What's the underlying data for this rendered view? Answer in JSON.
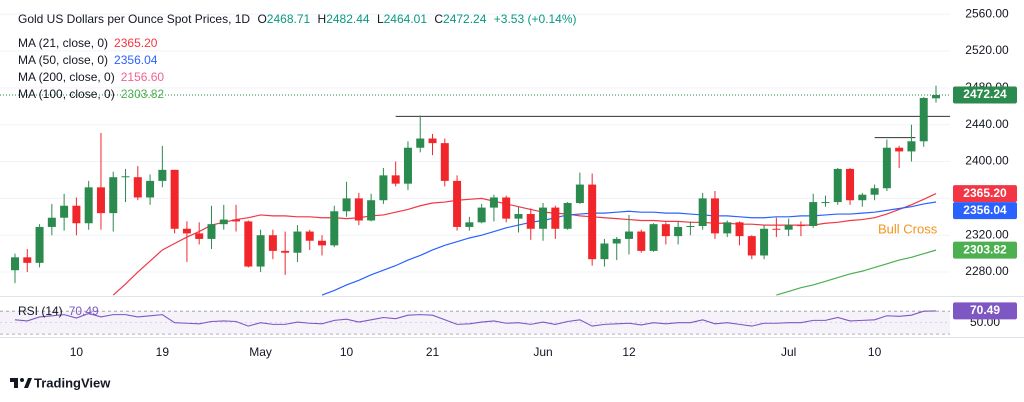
{
  "chart_data": {
    "type": "candlestick",
    "title": "Gold US Dollars per Ounce Spot Prices, 1D",
    "ohlc_labels": [
      "O",
      "H",
      "L",
      "C"
    ],
    "change": "+3.53 (+0.14%)",
    "annotation": "Bull Cross",
    "footer": "TradingView",
    "up_color": "#2b8a4e",
    "down_color": "#f0262b",
    "grid": true,
    "categories": [
      null,
      null,
      null,
      null,
      null,
      "10",
      null,
      null,
      null,
      null,
      null,
      null,
      "19",
      null,
      null,
      null,
      null,
      null,
      null,
      null,
      "May",
      null,
      null,
      null,
      null,
      null,
      null,
      "10",
      null,
      null,
      null,
      null,
      null,
      null,
      "21",
      null,
      null,
      null,
      null,
      null,
      null,
      null,
      null,
      "Jun",
      null,
      null,
      null,
      null,
      null,
      null,
      "12",
      null,
      null,
      null,
      null,
      null,
      null,
      null,
      null,
      null,
      null,
      null,
      null,
      "Jul",
      null,
      null,
      null,
      null,
      null,
      null,
      "10",
      null,
      null,
      null,
      null,
      null
    ],
    "open": [
      2282,
      2296,
      2290,
      2329,
      2339,
      2352,
      2333,
      2372,
      2344,
      2383,
      2383,
      2361,
      2379,
      2391,
      2327,
      2322,
      2316,
      2332,
      2337,
      2335,
      2286,
      2320,
      2303,
      2301,
      2324,
      2314,
      2309,
      2346,
      2360,
      2336,
      2358,
      2385,
      2376,
      2415,
      2425,
      2420,
      2379,
      2329,
      2334,
      2350,
      2361,
      2338,
      2343,
      2327,
      2350,
      2327,
      2355,
      2375,
      2294,
      2311,
      2316,
      2324,
      2303,
      2332,
      2319,
      2329,
      2330,
      2360,
      2322,
      2334,
      2319,
      2298,
      2327,
      2326,
      2331,
      2330,
      2355,
      2356,
      2392,
      2358,
      2364,
      2371,
      2415,
      2411,
      2422,
      2468.71
    ],
    "high": [
      2300,
      2305,
      2332,
      2354,
      2365,
      2361,
      2379,
      2431,
      2389,
      2392,
      2395,
      2386,
      2417,
      2391,
      2335,
      2334,
      2352,
      2353,
      2353,
      2336,
      2326,
      2326,
      2324,
      2331,
      2326,
      2320,
      2352,
      2378,
      2366,
      2365,
      2393,
      2400,
      2422,
      2450,
      2430,
      2425,
      2385,
      2340,
      2354,
      2364,
      2363,
      2351,
      2349,
      2355,
      2352,
      2356,
      2388,
      2387,
      2316,
      2318,
      2342,
      2326,
      2333,
      2334,
      2335,
      2335,
      2366,
      2368,
      2336,
      2335,
      2320,
      2331,
      2339,
      2338,
      2335,
      2365,
      2363,
      2393,
      2393,
      2366,
      2375,
      2424,
      2417,
      2440,
      2470,
      2482.44
    ],
    "low": [
      2268,
      2280,
      2285,
      2320,
      2325,
      2320,
      2326,
      2326,
      2324,
      2356,
      2358,
      2353,
      2372,
      2322,
      2291,
      2310,
      2305,
      2326,
      2324,
      2285,
      2280,
      2294,
      2277,
      2291,
      2304,
      2298,
      2307,
      2340,
      2331,
      2335,
      2354,
      2373,
      2369,
      2410,
      2407,
      2373,
      2325,
      2325,
      2333,
      2335,
      2334,
      2323,
      2315,
      2314,
      2316,
      2326,
      2354,
      2287,
      2286,
      2293,
      2299,
      2301,
      2302,
      2310,
      2310,
      2320,
      2326,
      2316,
      2318,
      2309,
      2294,
      2294,
      2318,
      2319,
      2319,
      2328,
      2351,
      2353,
      2353,
      2351,
      2358,
      2368,
      2393,
      2400,
      2416,
      2464.01
    ],
    "close": [
      2296,
      2290,
      2329,
      2339,
      2352,
      2333,
      2372,
      2344,
      2383,
      2384,
      2361,
      2379,
      2391,
      2327,
      2322,
      2316,
      2332,
      2337,
      2335,
      2286,
      2320,
      2303,
      2301,
      2324,
      2314,
      2309,
      2346,
      2360,
      2336,
      2358,
      2385,
      2376,
      2415,
      2425,
      2420,
      2379,
      2329,
      2334,
      2350,
      2361,
      2338,
      2343,
      2327,
      2350,
      2327,
      2355,
      2375,
      2294,
      2311,
      2316,
      2324,
      2303,
      2332,
      2319,
      2329,
      2330,
      2360,
      2322,
      2334,
      2319,
      2298,
      2327,
      2326,
      2331,
      2330,
      2356,
      2356,
      2392,
      2358,
      2364,
      2371,
      2415,
      2411,
      2422,
      2469,
      2472.24
    ],
    "series": [
      {
        "name": "MA (21, close, 0)",
        "color": "#f23645",
        "last": {
          "value": 2365.2,
          "label": "2365.20"
        },
        "values": [
          null,
          null,
          null,
          null,
          null,
          null,
          null,
          null,
          2255,
          2267,
          2280,
          2292,
          2304,
          2311,
          2318,
          2324,
          2331,
          2334,
          2337,
          2339,
          2342,
          2341,
          2341,
          2340,
          2340,
          2339,
          2339,
          2338,
          2339,
          2341,
          2342,
          2345,
          2348,
          2352,
          2355,
          2356,
          2358,
          2359,
          2360,
          2357,
          2354,
          2351,
          2348,
          2345,
          2344,
          2343,
          2341,
          2340,
          2339,
          2338,
          2337,
          2336,
          2336,
          2335,
          2335,
          2334,
          2334,
          2333,
          2333,
          2332,
          2332,
          2331,
          2331,
          2331,
          2331,
          2331,
          2333,
          2334,
          2336,
          2337,
          2339,
          2343,
          2348,
          2353,
          2359,
          2365.2
        ]
      },
      {
        "name": "MA (50, close, 0)",
        "color": "#2962ff",
        "last": {
          "value": 2356.04,
          "label": "2356.04"
        },
        "values": [
          null,
          null,
          null,
          null,
          null,
          null,
          null,
          null,
          null,
          null,
          null,
          null,
          null,
          null,
          null,
          null,
          null,
          null,
          null,
          null,
          null,
          null,
          null,
          null,
          null,
          2255,
          2260,
          2266,
          2271,
          2277,
          2282,
          2287,
          2293,
          2298,
          2304,
          2309,
          2313,
          2317,
          2320,
          2324,
          2328,
          2331,
          2334,
          2336,
          2339,
          2342,
          2343,
          2344,
          2344,
          2345,
          2346,
          2345,
          2345,
          2344,
          2344,
          2343,
          2342,
          2341,
          2341,
          2340,
          2339,
          2339,
          2340,
          2340,
          2341,
          2341,
          2342,
          2343,
          2343,
          2344,
          2345,
          2347,
          2349,
          2351,
          2354,
          2356.04
        ]
      },
      {
        "name": "MA (200, close, 0)",
        "color": "#f48fb1",
        "last": {
          "value": 2156.6,
          "label": "2156.60"
        }
      },
      {
        "name": "MA (100, close, 0)",
        "color": "#4caf50",
        "last": {
          "value": 2303.82,
          "label": "2303.82"
        },
        "values": [
          null,
          null,
          null,
          null,
          null,
          null,
          null,
          null,
          null,
          null,
          null,
          null,
          null,
          null,
          null,
          null,
          null,
          null,
          null,
          null,
          null,
          null,
          null,
          null,
          null,
          null,
          null,
          null,
          null,
          null,
          null,
          null,
          null,
          null,
          null,
          null,
          null,
          null,
          null,
          null,
          null,
          null,
          null,
          null,
          null,
          null,
          null,
          null,
          null,
          null,
          null,
          null,
          null,
          null,
          null,
          null,
          null,
          null,
          null,
          null,
          null,
          null,
          2255,
          2259,
          2263,
          2266,
          2270,
          2274,
          2278,
          2281,
          2285,
          2289,
          2293,
          2296,
          2300,
          2303.82
        ]
      }
    ],
    "hlines": [
      {
        "value": 2449,
        "from": 31,
        "to": 75
      },
      {
        "value": 2426,
        "from": 70,
        "to": 73
      }
    ],
    "ylim": [
      2254,
      2570
    ],
    "yticks": [
      {
        "value": 2280,
        "label": "2280.00"
      },
      {
        "value": 2320,
        "label": "2320.00"
      },
      {
        "value": 2360,
        "label": "2360.00"
      },
      {
        "value": 2400,
        "label": "2400.00"
      },
      {
        "value": 2440,
        "label": "2440.00"
      },
      {
        "value": 2480,
        "label": "2480.00"
      },
      {
        "value": 2520,
        "label": "2520.00"
      },
      {
        "value": 2560,
        "label": "2560.00"
      }
    ],
    "rsi": {
      "name": "RSI (14)",
      "color": "#7e57c2",
      "ylim": [
        25,
        93
      ],
      "bands": [
        30,
        70
      ],
      "yticks": [
        {
          "value": 50,
          "label": "50.00"
        }
      ],
      "values": [
        55,
        53,
        60,
        62,
        64,
        58,
        66,
        60,
        64,
        64,
        60,
        62,
        64,
        50,
        49,
        48,
        52,
        53,
        52,
        44,
        50,
        47,
        47,
        51,
        49,
        48,
        54,
        56,
        51,
        55,
        59,
        57,
        63,
        64,
        63,
        55,
        47,
        48,
        51,
        53,
        49,
        50,
        47,
        51,
        47,
        52,
        55,
        44,
        47,
        48,
        49,
        46,
        50,
        48,
        50,
        50,
        55,
        48,
        50,
        47,
        44,
        49,
        49,
        50,
        50,
        54,
        54,
        59,
        53,
        54,
        55,
        62,
        61,
        63,
        70,
        70.49
      ]
    }
  }
}
